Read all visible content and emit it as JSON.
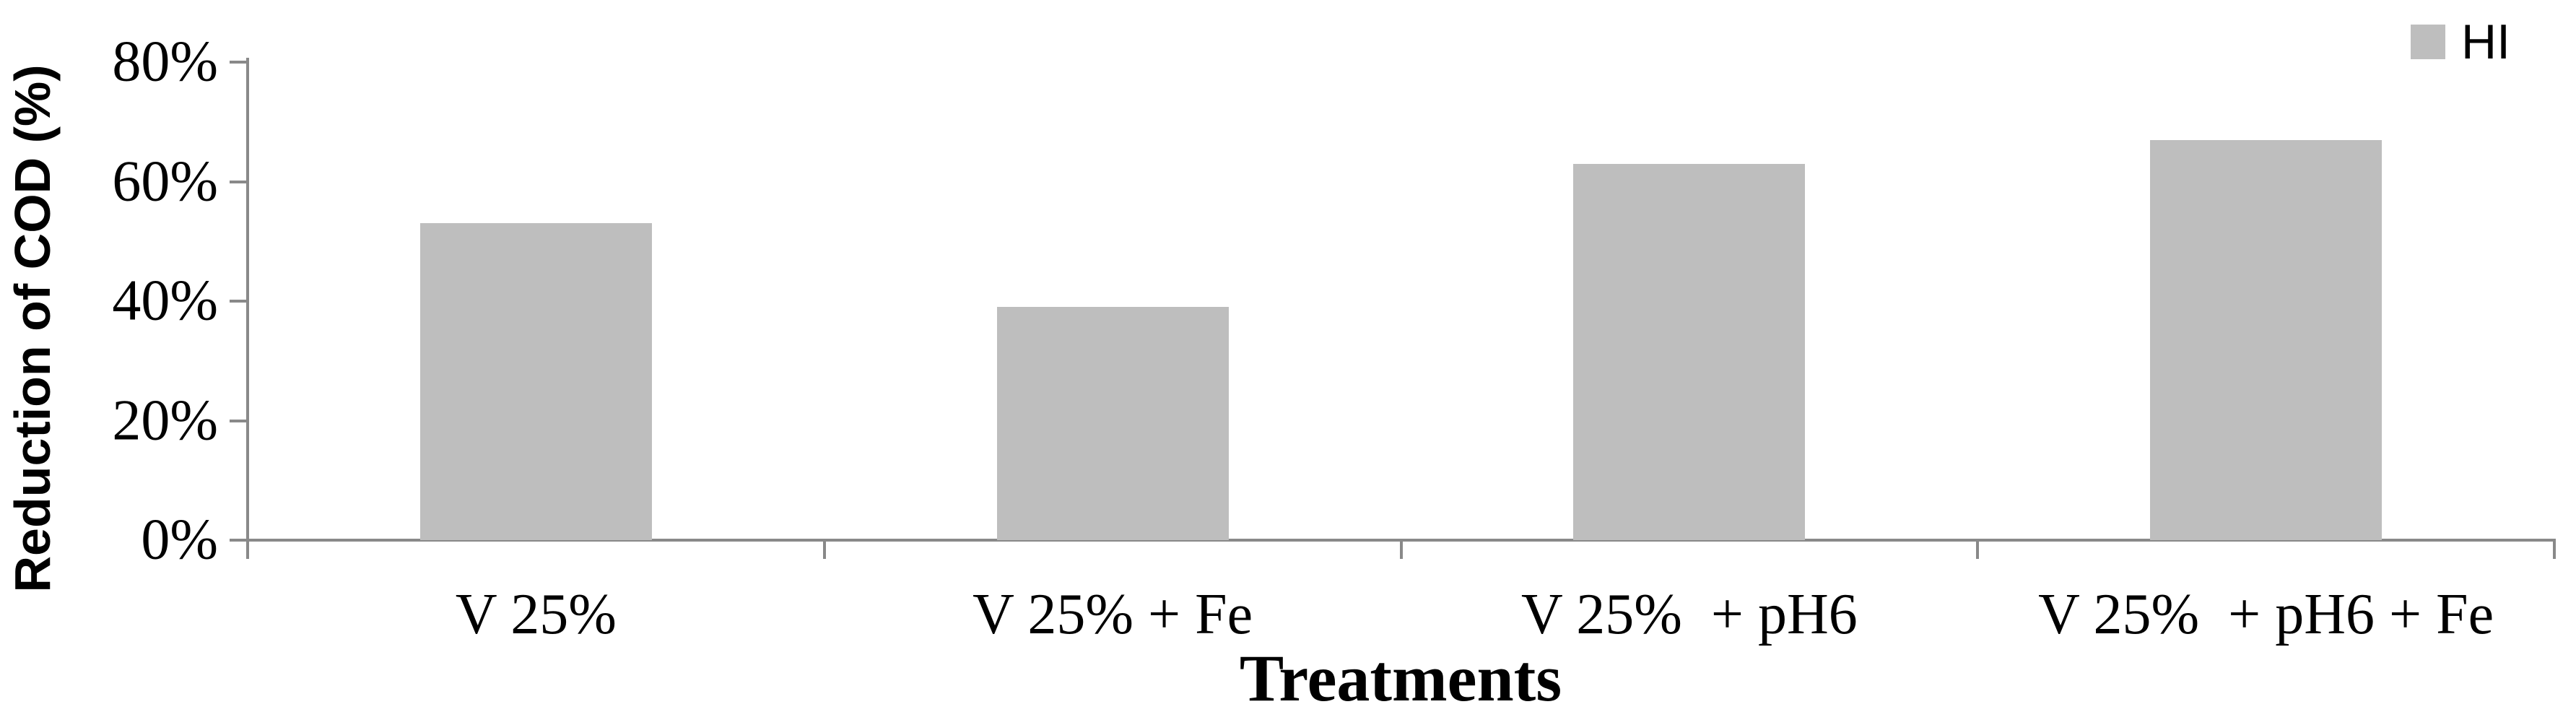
{
  "chart_data": {
    "type": "bar",
    "title": "",
    "categories": [
      "V 25%",
      "V 25% + Fe",
      "V 25%  + pH6",
      "V 25%  + pH6 + Fe"
    ],
    "series": [
      {
        "name": "HI",
        "values": [
          53,
          39,
          63,
          67
        ]
      }
    ],
    "values_unit": "% reduction of COD",
    "xlabel": "Treatments",
    "ylabel": "Reduction of COD (%)",
    "ylim": [
      0,
      80
    ],
    "yticks": [
      {
        "label": "0%",
        "value": 0
      },
      {
        "label": "20%",
        "value": 20
      },
      {
        "label": "40%",
        "value": 40
      },
      {
        "label": "60%",
        "value": 60
      },
      {
        "label": "80%",
        "value": 80
      }
    ],
    "grid": false,
    "legend": {
      "position": "top-right",
      "entries": [
        {
          "label": "HI",
          "swatch_color": "#BEBEBE"
        }
      ]
    },
    "colors": {
      "bar": "#BEBEBE",
      "axis": "#898989",
      "text": "#000000",
      "background": "#FFFFFF"
    }
  }
}
